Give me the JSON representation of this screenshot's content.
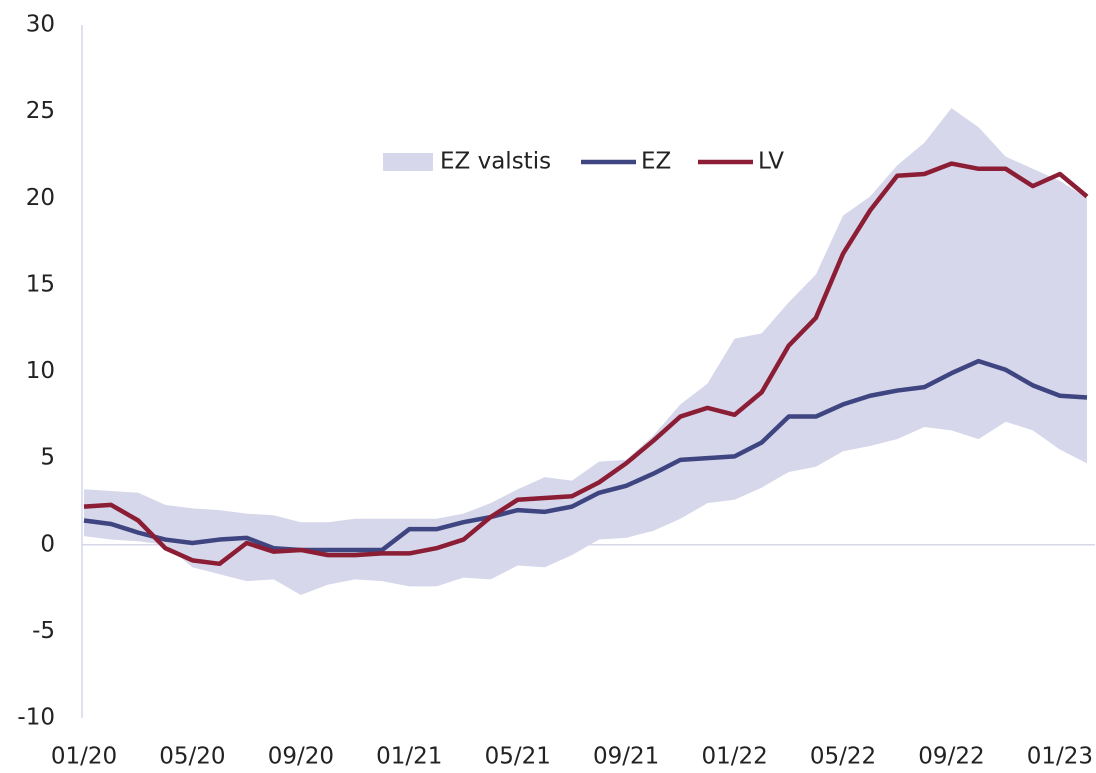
{
  "chart_data": {
    "type": "line",
    "categories": [
      "01/20",
      null,
      null,
      null,
      "05/20",
      null,
      null,
      null,
      "09/20",
      null,
      null,
      null,
      "01/21",
      null,
      null,
      null,
      "05/21",
      null,
      null,
      null,
      "09/21",
      null,
      null,
      null,
      "01/22",
      null,
      null,
      null,
      "05/22",
      null,
      null,
      null,
      "09/22",
      null,
      null,
      null,
      "01/23",
      null
    ],
    "band": {
      "name": "EZ valstis",
      "color": "#d6d7ea",
      "upper": [
        3.2,
        3.1,
        3.0,
        2.3,
        2.1,
        2.0,
        1.8,
        1.7,
        1.3,
        1.3,
        1.5,
        1.5,
        1.5,
        1.5,
        1.8,
        2.4,
        3.2,
        3.9,
        3.7,
        4.8,
        4.9,
        6.3,
        8.1,
        9.3,
        11.9,
        12.2,
        14.0,
        15.6,
        19.0,
        20.1,
        21.9,
        23.2,
        25.2,
        24.1,
        22.4,
        21.7,
        21.0,
        20.0
      ],
      "lower": [
        0.5,
        0.3,
        0.2,
        0,
        -1.3,
        -1.7,
        -2.1,
        -2.0,
        -2.9,
        -2.3,
        -2.0,
        -2.1,
        -2.4,
        -2.4,
        -1.9,
        -2.0,
        -1.2,
        -1.3,
        -0.6,
        0.3,
        0.4,
        0.8,
        1.5,
        2.4,
        2.6,
        3.3,
        4.2,
        4.5,
        5.4,
        5.7,
        6.1,
        6.8,
        6.6,
        6.1,
        7.1,
        6.6,
        5.5,
        4.7
      ]
    },
    "series": [
      {
        "name": "EZ",
        "color": "#3f4580",
        "values": [
          1.4,
          1.2,
          0.7,
          0.3,
          0.1,
          0.3,
          0.4,
          -0.2,
          -0.3,
          -0.3,
          -0.3,
          -0.3,
          0.9,
          0.9,
          1.3,
          1.6,
          2.0,
          1.9,
          2.2,
          3.0,
          3.4,
          4.1,
          4.9,
          5.0,
          5.1,
          5.9,
          7.4,
          7.4,
          8.1,
          8.6,
          8.9,
          9.1,
          9.9,
          10.6,
          10.1,
          9.2,
          8.6,
          8.5
        ]
      },
      {
        "name": "LV",
        "color": "#8b1d35",
        "values": [
          2.2,
          2.3,
          1.4,
          -0.2,
          -0.9,
          -1.1,
          0.1,
          -0.4,
          -0.3,
          -0.6,
          -0.6,
          -0.5,
          -0.5,
          -0.2,
          0.3,
          1.6,
          2.6,
          2.7,
          2.8,
          3.6,
          4.7,
          6.0,
          7.4,
          7.9,
          7.5,
          8.8,
          11.5,
          13.1,
          16.8,
          19.3,
          21.3,
          21.4,
          22.0,
          21.7,
          21.7,
          20.7,
          21.4,
          20.1
        ]
      }
    ],
    "ylim": [
      -10,
      30
    ],
    "yticks": [
      -10,
      -5,
      0,
      5,
      10,
      15,
      20,
      25,
      30
    ]
  }
}
